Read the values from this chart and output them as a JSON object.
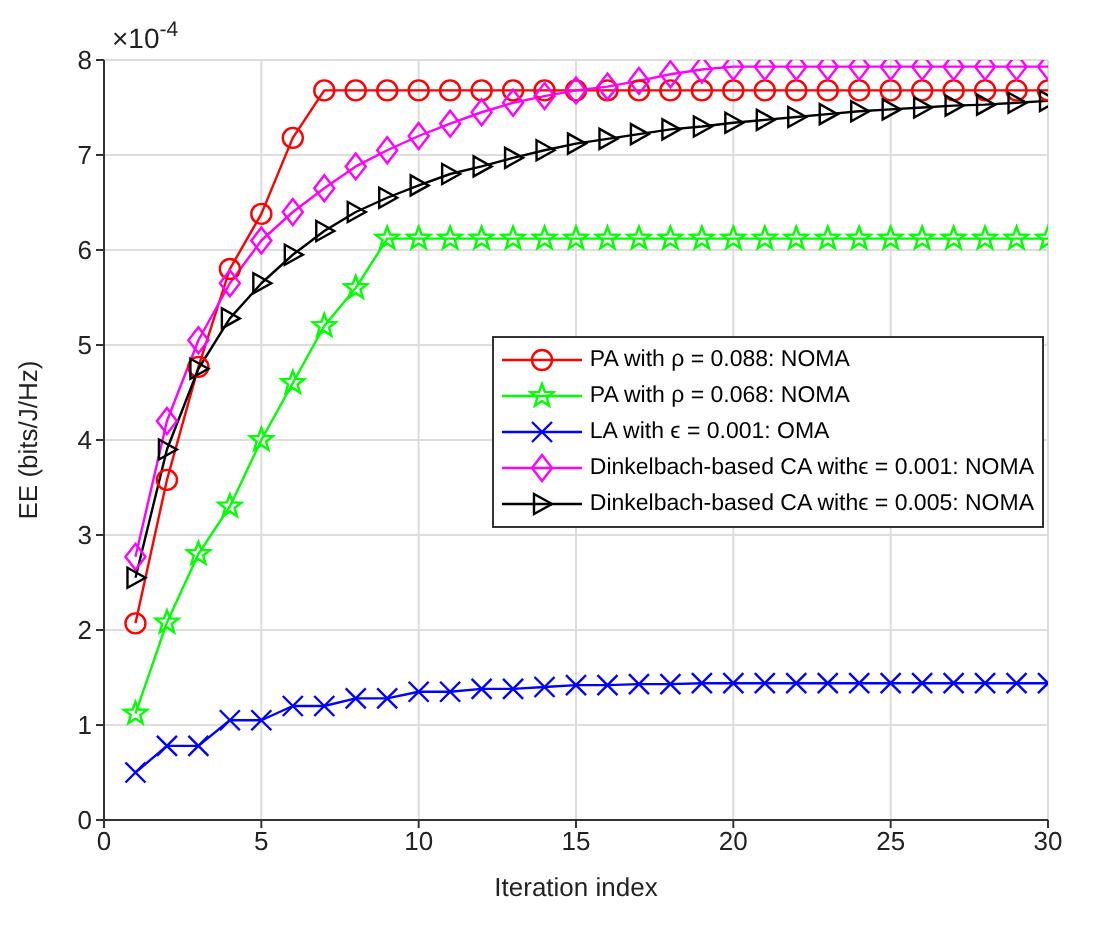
{
  "chart_data": {
    "type": "line",
    "xlabel": "Iteration index",
    "ylabel": "EE (bits/J/Hz)",
    "annotations": [
      "×10$^{-4}$"
    ],
    "x": [
      1,
      2,
      3,
      4,
      5,
      6,
      7,
      8,
      9,
      10,
      11,
      12,
      13,
      14,
      15,
      16,
      17,
      18,
      19,
      20,
      21,
      22,
      23,
      24,
      25,
      26,
      27,
      28,
      29,
      30
    ],
    "xlim": [
      0,
      30
    ],
    "xticks": [
      0,
      5,
      10,
      15,
      20,
      25,
      30
    ],
    "ylim": [
      0,
      8
    ],
    "yticks": [
      0,
      1,
      2,
      3,
      4,
      5,
      6,
      7,
      8
    ],
    "grid": true,
    "legend": "right",
    "series": [
      {
        "name": "PA with ρ = 0.088: NOMA",
        "color": "#ff0000",
        "marker": "circle",
        "values": [
          2.07,
          3.58,
          4.77,
          5.8,
          6.38,
          7.18,
          7.68,
          7.68,
          7.68,
          7.68,
          7.68,
          7.68,
          7.68,
          7.68,
          7.68,
          7.68,
          7.68,
          7.68,
          7.68,
          7.68,
          7.68,
          7.68,
          7.68,
          7.68,
          7.68,
          7.68,
          7.68,
          7.68,
          7.68,
          7.68
        ]
      },
      {
        "name": "PA with ρ = 0.068: NOMA",
        "color": "#00ff00",
        "marker": "star",
        "values": [
          1.12,
          2.08,
          2.8,
          3.3,
          4.0,
          4.6,
          5.2,
          5.6,
          6.12,
          6.12,
          6.12,
          6.12,
          6.12,
          6.12,
          6.12,
          6.12,
          6.12,
          6.12,
          6.12,
          6.12,
          6.12,
          6.12,
          6.12,
          6.12,
          6.12,
          6.12,
          6.12,
          6.12,
          6.12,
          6.12
        ]
      },
      {
        "name": "LA with ϵ = 0.001:  OMA",
        "color": "#0000ff",
        "marker": "cross",
        "values": [
          0.5,
          0.78,
          0.78,
          1.05,
          1.05,
          1.2,
          1.2,
          1.28,
          1.28,
          1.35,
          1.35,
          1.38,
          1.38,
          1.4,
          1.42,
          1.42,
          1.43,
          1.43,
          1.44,
          1.44,
          1.44,
          1.44,
          1.44,
          1.44,
          1.44,
          1.44,
          1.44,
          1.44,
          1.44,
          1.44
        ]
      },
      {
        "name": "Dinkelbach-based CA withϵ = 0.001: NOMA",
        "color": "#ff00ff",
        "marker": "diamond",
        "values": [
          2.77,
          4.2,
          5.05,
          5.65,
          6.1,
          6.4,
          6.65,
          6.88,
          7.05,
          7.2,
          7.33,
          7.45,
          7.55,
          7.62,
          7.68,
          7.72,
          7.78,
          7.85,
          7.9,
          7.93,
          7.93,
          7.93,
          7.93,
          7.93,
          7.93,
          7.93,
          7.93,
          7.93,
          7.93,
          7.93
        ]
      },
      {
        "name": "Dinkelbach-based CA withϵ = 0.005: NOMA",
        "color": "#000000",
        "marker": "triangle",
        "values": [
          2.55,
          3.9,
          4.75,
          5.28,
          5.65,
          5.95,
          6.2,
          6.4,
          6.55,
          6.68,
          6.8,
          6.88,
          6.97,
          7.05,
          7.12,
          7.17,
          7.22,
          7.27,
          7.3,
          7.34,
          7.37,
          7.4,
          7.43,
          7.46,
          7.48,
          7.5,
          7.52,
          7.53,
          7.55,
          7.57
        ]
      }
    ]
  }
}
